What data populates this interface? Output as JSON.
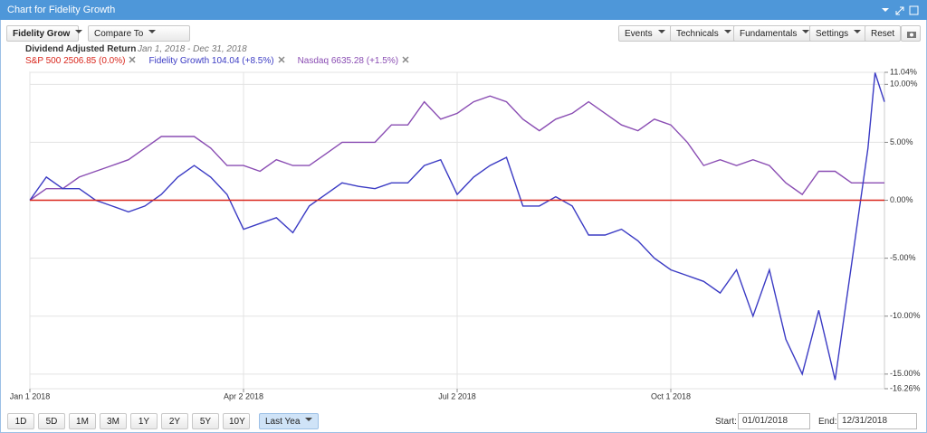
{
  "window": {
    "title": "Chart for Fidelity Growth"
  },
  "toolbar": {
    "symbol": "Fidelity Grow",
    "compare": "Compare To",
    "menus": [
      "Events",
      "Technicals",
      "Fundamentals",
      "Settings"
    ],
    "reset": "Reset"
  },
  "chart_data": {
    "type": "line",
    "title": "Dividend Adjusted Return",
    "subtitle": "Jan 1, 2018 - Dec 31, 2018",
    "x": [
      "2018-01-01",
      "2018-01-08",
      "2018-01-15",
      "2018-01-22",
      "2018-01-29",
      "2018-02-05",
      "2018-02-12",
      "2018-02-19",
      "2018-02-26",
      "2018-03-05",
      "2018-03-12",
      "2018-03-19",
      "2018-03-26",
      "2018-04-02",
      "2018-04-09",
      "2018-04-16",
      "2018-04-23",
      "2018-04-30",
      "2018-05-07",
      "2018-05-14",
      "2018-05-21",
      "2018-05-28",
      "2018-06-04",
      "2018-06-11",
      "2018-06-18",
      "2018-06-25",
      "2018-07-02",
      "2018-07-09",
      "2018-07-16",
      "2018-07-23",
      "2018-07-30",
      "2018-08-06",
      "2018-08-13",
      "2018-08-20",
      "2018-08-27",
      "2018-09-03",
      "2018-09-10",
      "2018-09-17",
      "2018-09-24",
      "2018-10-01",
      "2018-10-08",
      "2018-10-15",
      "2018-10-22",
      "2018-10-29",
      "2018-11-05",
      "2018-11-12",
      "2018-11-19",
      "2018-11-26",
      "2018-12-03",
      "2018-12-10",
      "2018-12-17",
      "2018-12-24",
      "2018-12-27",
      "2018-12-31"
    ],
    "xlim": [
      "2018-01-01",
      "2018-12-31"
    ],
    "xticks": [
      {
        "value": "2018-01-01",
        "label": "Jan 1 2018"
      },
      {
        "value": "2018-04-02",
        "label": "Apr 2 2018"
      },
      {
        "value": "2018-07-02",
        "label": "Jul 2 2018"
      },
      {
        "value": "2018-10-01",
        "label": "Oct 1 2018"
      }
    ],
    "ylim": [
      -16.26,
      11.04
    ],
    "yticks": [
      {
        "value": 11.04,
        "label": "11.04%"
      },
      {
        "value": 10,
        "label": "10.00%"
      },
      {
        "value": 5,
        "label": "5.00%"
      },
      {
        "value": 0,
        "label": "0.00%"
      },
      {
        "value": -5,
        "label": "-5.00%"
      },
      {
        "value": -10,
        "label": "-10.00%"
      },
      {
        "value": -15,
        "label": "-15.00%"
      },
      {
        "value": -16.26,
        "label": "-16.26%"
      }
    ],
    "grid": true,
    "series": [
      {
        "name": "Nasdaq 6635.28 (+1.5%)",
        "color": "#8a4db3",
        "values": [
          0,
          1,
          1,
          2,
          2.5,
          3,
          3.5,
          4.5,
          5.5,
          5.5,
          5.5,
          4.5,
          3,
          3,
          2.5,
          3.5,
          3,
          3,
          4,
          5,
          5,
          5,
          6.5,
          6.5,
          8.5,
          7,
          7.5,
          8.5,
          9,
          8.5,
          7,
          6,
          7,
          7.5,
          8.5,
          7.5,
          6.5,
          6,
          7,
          6.5,
          5,
          3,
          3.5,
          3,
          3.5,
          3,
          1.5,
          0.5,
          2.5,
          2.5,
          1.5,
          1.5,
          1.5,
          1.5
        ]
      },
      {
        "name": "Fidelity Growth 104.04 (+8.5%)",
        "color": "#3b3bc4",
        "values": [
          0,
          2,
          1,
          1,
          0,
          -0.5,
          -1,
          -0.5,
          0.5,
          2,
          3,
          2,
          0.5,
          -2.5,
          -2,
          -1.5,
          -2.8,
          -0.5,
          0.5,
          1.5,
          1.2,
          1,
          1.5,
          1.5,
          3,
          3.5,
          0.5,
          2,
          3,
          3.7,
          -0.5,
          -0.5,
          0.3,
          -0.5,
          -3,
          -3,
          -2.5,
          -3.5,
          -5,
          -6,
          -6.5,
          -7,
          -8,
          -6,
          -10,
          -6,
          -12,
          -15,
          -9.5,
          -15.5,
          -5.5,
          4.5,
          11,
          8.5
        ]
      },
      {
        "name": "S&P 500 2506.85 (0.0%)",
        "color": "#d9261c",
        "values": [
          0,
          0,
          0,
          0,
          0,
          0,
          0,
          0,
          0,
          0,
          0,
          0,
          0,
          0,
          0,
          0,
          0,
          0,
          0,
          0,
          0,
          0,
          0,
          0,
          0,
          0,
          0,
          0,
          0,
          0,
          0,
          0,
          0,
          0,
          0,
          0,
          0,
          0,
          0,
          0,
          0,
          0,
          0,
          0,
          0,
          0,
          0,
          0,
          0,
          0,
          0,
          0,
          0,
          0
        ]
      }
    ]
  },
  "range_buttons": [
    "1D",
    "5D",
    "1M",
    "3M",
    "1Y",
    "2Y",
    "5Y",
    "10Y"
  ],
  "selected_range": "Last Yea",
  "dates": {
    "start_label": "Start:",
    "start": "01/01/2018",
    "end_label": "End:",
    "end": "12/31/2018"
  }
}
